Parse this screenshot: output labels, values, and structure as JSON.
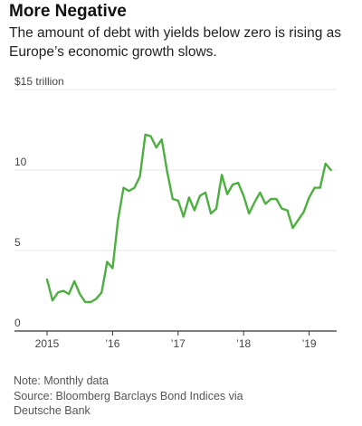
{
  "title": "More Negative",
  "subtitle": "The amount of debt with yields below zero is rising as Europe’s economic growth slows.",
  "note": "Note: Monthly data",
  "source_line1": "Source: Bloomberg Barclays Bond Indices via",
  "source_line2": "Deutsche Bank",
  "colors": {
    "line": "#4caf3f",
    "grid": "#e6e6e6",
    "axis": "#333333"
  },
  "chart_data": {
    "type": "line",
    "title": "More Negative",
    "ylabel": "",
    "y_unit_label": "$15 trillion",
    "ylim": [
      0,
      15
    ],
    "xlim": [
      2015.0,
      2019.42
    ],
    "y_ticks": [
      {
        "value": 0,
        "label": "0"
      },
      {
        "value": 5,
        "label": "5"
      },
      {
        "value": 10,
        "label": "10"
      },
      {
        "value": 15,
        "label": "$15 trillion"
      }
    ],
    "x_ticks": [
      {
        "value": 2015,
        "label": "2015"
      },
      {
        "value": 2016,
        "label": "’16"
      },
      {
        "value": 2017,
        "label": "’17"
      },
      {
        "value": 2018,
        "label": "’18"
      },
      {
        "value": 2019,
        "label": "’19"
      }
    ],
    "grid": true,
    "series": [
      {
        "x": [
          2015.0,
          2015.083,
          2015.167,
          2015.25,
          2015.333,
          2015.417,
          2015.5,
          2015.583,
          2015.667,
          2015.75,
          2015.833,
          2015.917,
          2016.0,
          2016.083,
          2016.167,
          2016.25,
          2016.333,
          2016.417,
          2016.5,
          2016.583,
          2016.667,
          2016.75,
          2016.833,
          2016.917,
          2017.0,
          2017.083,
          2017.167,
          2017.25,
          2017.333,
          2017.417,
          2017.5,
          2017.583,
          2017.667,
          2017.75,
          2017.833,
          2017.917,
          2018.0,
          2018.083,
          2018.167,
          2018.25,
          2018.333,
          2018.417,
          2018.5,
          2018.583,
          2018.667,
          2018.75,
          2018.833,
          2018.917,
          2019.0,
          2019.083,
          2019.167,
          2019.25,
          2019.333
        ],
        "values": [
          3.2,
          1.9,
          2.4,
          2.5,
          2.3,
          3.1,
          2.3,
          1.8,
          1.8,
          2.0,
          2.4,
          4.3,
          3.9,
          6.9,
          8.9,
          8.7,
          8.9,
          9.6,
          12.2,
          12.1,
          11.4,
          11.9,
          9.9,
          8.2,
          8.1,
          7.1,
          8.3,
          7.5,
          8.4,
          8.6,
          7.3,
          7.6,
          9.7,
          8.5,
          9.1,
          9.2,
          8.4,
          7.3,
          8.0,
          8.6,
          7.9,
          8.2,
          8.2,
          7.6,
          7.5,
          6.4,
          6.9,
          7.4,
          8.3,
          8.9,
          8.9,
          10.4,
          10.0
        ]
      }
    ]
  }
}
